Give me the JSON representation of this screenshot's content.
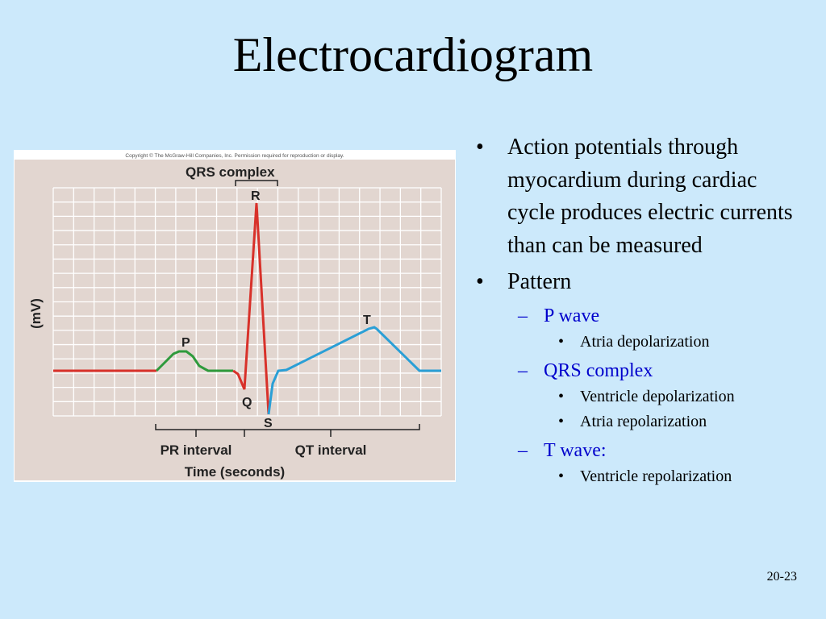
{
  "slide": {
    "title": "Electrocardiogram",
    "number": "20-23"
  },
  "figure": {
    "copyright": "Copyright © The McGraw-Hill Companies, Inc. Permission required for reproduction or display.",
    "header": "QRS complex",
    "y_axis_label": "(mV)",
    "x_axis_label": "Time (seconds)",
    "wave_labels": {
      "p": "P",
      "q": "Q",
      "r": "R",
      "s": "S",
      "t": "T"
    },
    "interval_labels": {
      "pr": "PR interval",
      "qt": "QT interval"
    },
    "colors": {
      "panel_bg": "#e2d6d0",
      "grid": "#ffffff",
      "p_wave": "#2e9a3c",
      "qrs": "#d8312a",
      "t_wave": "#2a9fd6",
      "bracket": "#222222"
    }
  },
  "bullets": [
    {
      "text": "Action potentials through myocardium during cardiac cycle produces electric currents than can be measured",
      "children": []
    },
    {
      "text": "Pattern",
      "children": [
        {
          "text": "P wave",
          "children": [
            "Atria depolarization"
          ]
        },
        {
          "text": "QRS complex",
          "children": [
            "Ventricle depolarization",
            "Atria repolarization"
          ]
        },
        {
          "text": "T wave:",
          "children": [
            "Ventricle repolarization"
          ]
        }
      ]
    }
  ]
}
